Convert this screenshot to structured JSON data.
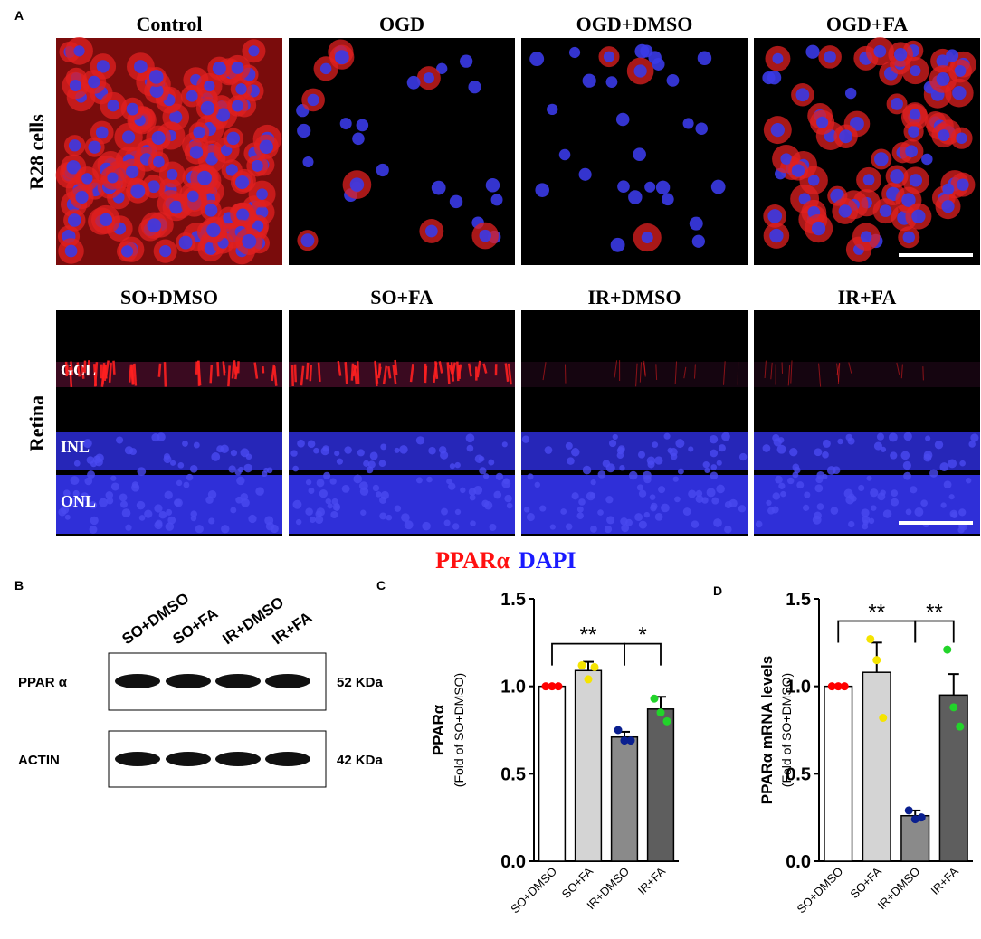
{
  "panel_a": {
    "label": "A",
    "row_labels": [
      "R28 cells",
      "Retina"
    ],
    "top_titles": [
      "Control",
      "OGD",
      "OGD+DMSO",
      "OGD+FA"
    ],
    "bottom_titles": [
      "SO+DMSO",
      "SO+FA",
      "IR+DMSO",
      "IR+FA"
    ],
    "layers": [
      "GCL",
      "INL",
      "ONL"
    ],
    "legend": [
      "PPARα",
      "DAPI"
    ]
  },
  "panel_b": {
    "label": "B",
    "lanes": [
      "SO+DMSO",
      "SO+FA",
      "IR+DMSO",
      "IR+FA"
    ],
    "rows": [
      {
        "protein": "PPAR α",
        "size": "52 KDa"
      },
      {
        "protein": "ACTIN",
        "size": "42 KDa"
      }
    ]
  },
  "chart_data": [
    {
      "type": "bar",
      "panel": "C",
      "ylabel": "PPARα",
      "ylabel_sub": "(Fold of SO+DMSO)",
      "categories": [
        "SO+DMSO",
        "SO+FA",
        "IR+DMSO",
        "IR+FA"
      ],
      "colors": [
        "#ffffff",
        "#d4d4d4",
        "#8a8a8a",
        "#5e5e5e"
      ],
      "point_colors": [
        "#ff0000",
        "#f5e400",
        "#0a1f8f",
        "#22d42a"
      ],
      "values": [
        1.0,
        1.09,
        0.71,
        0.87
      ],
      "errors": [
        0,
        0.05,
        0.03,
        0.07
      ],
      "points": [
        [
          1.0,
          1.0,
          1.0
        ],
        [
          1.12,
          1.04,
          1.11
        ],
        [
          0.75,
          0.69,
          0.69
        ],
        [
          0.93,
          0.85,
          0.8
        ]
      ],
      "annotations": [
        "**",
        "*"
      ],
      "ylim": [
        0,
        1.5
      ],
      "yticks": [
        {
          "value": 0,
          "label": "0.0"
        },
        {
          "value": 0.5,
          "label": "0.5"
        },
        {
          "value": 1,
          "label": "1.0"
        },
        {
          "value": 1.5,
          "label": "1.5"
        }
      ]
    },
    {
      "type": "bar",
      "panel": "D",
      "ylabel": "PPARα mRNA levels",
      "ylabel_sub": "(Fold of SO+DMSO)",
      "categories": [
        "SO+DMSO",
        "SO+FA",
        "IR+DMSO",
        "IR+FA"
      ],
      "colors": [
        "#ffffff",
        "#d4d4d4",
        "#8a8a8a",
        "#5e5e5e"
      ],
      "point_colors": [
        "#ff0000",
        "#f5e400",
        "#0a1f8f",
        "#22d42a"
      ],
      "values": [
        1.0,
        1.08,
        0.26,
        0.95
      ],
      "errors": [
        0,
        0.17,
        0.03,
        0.12
      ],
      "points": [
        [
          1.0,
          1.0,
          1.0
        ],
        [
          1.27,
          1.15,
          0.82
        ],
        [
          0.29,
          0.24,
          0.25
        ],
        [
          1.21,
          0.88,
          0.77
        ]
      ],
      "annotations": [
        "**",
        "**"
      ],
      "ylim": [
        0,
        1.5
      ],
      "yticks": [
        {
          "value": 0,
          "label": "0.0"
        },
        {
          "value": 0.5,
          "label": "0.5"
        },
        {
          "value": 1,
          "label": "1.0"
        },
        {
          "value": 1.5,
          "label": "1.5"
        }
      ]
    }
  ]
}
